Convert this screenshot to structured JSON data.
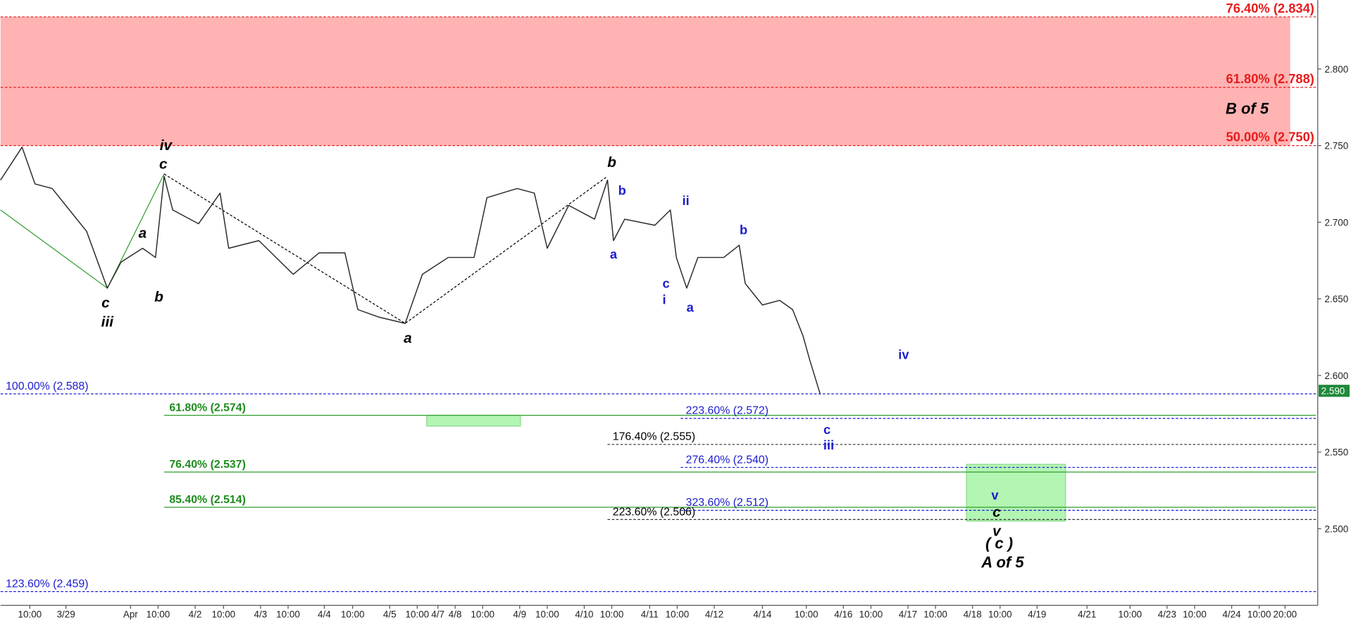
{
  "chart_data": {
    "type": "line",
    "xlim": [
      0,
      1528
    ],
    "ylim": [
      2.45,
      2.845
    ],
    "yticks": [
      {
        "value": 2.5,
        "label": "2.500"
      },
      {
        "value": 2.55,
        "label": "2.550"
      },
      {
        "value": 2.6,
        "label": "2.600"
      },
      {
        "value": 2.65,
        "label": "2.650"
      },
      {
        "value": 2.7,
        "label": "2.700"
      },
      {
        "value": 2.75,
        "label": "2.750"
      },
      {
        "value": 2.8,
        "label": "2.800"
      }
    ],
    "xticks": [
      {
        "value": 34,
        "label": "10:00"
      },
      {
        "value": 76,
        "label": "3/29"
      },
      {
        "value": 151,
        "label": "Apr"
      },
      {
        "value": 183,
        "label": "10:00"
      },
      {
        "value": 226,
        "label": "4/2"
      },
      {
        "value": 259,
        "label": "10:00"
      },
      {
        "value": 302,
        "label": "4/3"
      },
      {
        "value": 334,
        "label": "10:00"
      },
      {
        "value": 376,
        "label": "4/4"
      },
      {
        "value": 409,
        "label": "10:00"
      },
      {
        "value": 452,
        "label": "4/5"
      },
      {
        "value": 484,
        "label": "10:00"
      },
      {
        "value": 508,
        "label": "4/7"
      },
      {
        "value": 528,
        "label": "4/8"
      },
      {
        "value": 560,
        "label": "10:00"
      },
      {
        "value": 603,
        "label": "4/9"
      },
      {
        "value": 635,
        "label": "10:00"
      },
      {
        "value": 678,
        "label": "4/10"
      },
      {
        "value": 710,
        "label": "10:00"
      },
      {
        "value": 754,
        "label": "4/11"
      },
      {
        "value": 786,
        "label": "10:00"
      },
      {
        "value": 829,
        "label": "4/12"
      },
      {
        "value": 885,
        "label": "4/14"
      },
      {
        "value": 936,
        "label": "10:00"
      },
      {
        "value": 979,
        "label": "4/16"
      },
      {
        "value": 1011,
        "label": "10:00"
      },
      {
        "value": 1054,
        "label": "4/17"
      },
      {
        "value": 1086,
        "label": "10:00"
      },
      {
        "value": 1129,
        "label": "4/18"
      },
      {
        "value": 1161,
        "label": "10:00"
      },
      {
        "value": 1204,
        "label": "4/19"
      },
      {
        "value": 1262,
        "label": "4/21"
      },
      {
        "value": 1312,
        "label": "10:00"
      },
      {
        "value": 1355,
        "label": "4/23"
      },
      {
        "value": 1387,
        "label": "10:00"
      },
      {
        "value": 1430,
        "label": "4/24"
      },
      {
        "value": 1462,
        "label": "10:00"
      },
      {
        "value": 1492,
        "label": "20:00"
      }
    ],
    "series": [
      {
        "color": "#2a2a2a",
        "x": [
          0,
          25,
          40,
          60,
          80,
          100,
          124,
          140,
          165,
          180,
          190,
          200,
          230,
          255,
          265,
          300,
          340,
          370,
          400,
          415,
          440,
          470,
          490,
          520,
          550,
          565,
          600,
          620,
          635,
          660,
          690,
          705,
          712,
          725,
          760,
          778,
          785,
          797,
          810,
          840,
          858,
          865,
          885,
          905,
          920,
          932,
          940,
          952
        ],
        "values": [
          2.7275,
          2.749,
          2.725,
          2.722,
          2.708,
          2.694,
          2.657,
          2.674,
          2.683,
          2.677,
          2.73,
          2.708,
          2.699,
          2.719,
          2.683,
          2.688,
          2.666,
          2.68,
          2.68,
          2.643,
          2.638,
          2.634,
          2.666,
          2.677,
          2.677,
          2.716,
          2.722,
          2.719,
          2.683,
          2.711,
          2.702,
          2.7275,
          2.688,
          2.702,
          2.698,
          2.708,
          2.677,
          2.657,
          2.677,
          2.677,
          2.685,
          2.66,
          2.646,
          2.649,
          2.643,
          2.626,
          2.61,
          2.588
        ]
      }
    ],
    "last_price": {
      "value": 2.59,
      "label": "2.590"
    },
    "zones": [
      {
        "x": [
          0,
          1498
        ],
        "range": [
          2.75,
          2.834
        ],
        "color": "#ffb3b3"
      },
      {
        "x": [
          495,
          604
        ],
        "range": [
          2.567,
          2.574
        ],
        "color": "#b3f5b3"
      },
      {
        "x": [
          1122,
          1237
        ],
        "range": [
          2.505,
          2.542
        ],
        "color": "#b3f5b3"
      }
    ],
    "wave_lines": [
      {
        "color": "#2e9e2e",
        "dash": false,
        "x": [
          0,
          124,
          190
        ],
        "values": [
          2.708,
          2.657,
          2.7315
        ]
      },
      {
        "color": "#000000",
        "dash": true,
        "x": [
          190,
          470,
          705
        ],
        "values": [
          2.7315,
          2.634,
          2.73
        ]
      }
    ],
    "levels": [
      {
        "label": "76.40% (2.834)",
        "value": 2.834,
        "color": "#e81c1c",
        "x_start": 0,
        "dash": true,
        "side": "right"
      },
      {
        "label": "61.80% (2.788)",
        "value": 2.788,
        "color": "#e81c1c",
        "x_start": 0,
        "dash": true,
        "side": "right"
      },
      {
        "label": "50.00% (2.750)",
        "value": 2.75,
        "color": "#e81c1c",
        "x_start": 0,
        "dash": true,
        "side": "right"
      },
      {
        "label": "100.00% (2.588)",
        "value": 2.588,
        "color": "#1c1cd0",
        "x_start": 0,
        "dash": true,
        "side": "left"
      },
      {
        "label": "123.60% (2.459)",
        "value": 2.459,
        "color": "#1c1cd0",
        "x_start": 0,
        "dash": true,
        "side": "left"
      },
      {
        "label": "61.80% (2.574)",
        "value": 2.574,
        "color": "#1e8c1e",
        "x_start": 190,
        "dash": false,
        "side": "left"
      },
      {
        "label": "76.40% (2.537)",
        "value": 2.537,
        "color": "#1e8c1e",
        "x_start": 190,
        "dash": false,
        "side": "left"
      },
      {
        "label": "85.40% (2.514)",
        "value": 2.514,
        "color": "#1e8c1e",
        "x_start": 190,
        "dash": false,
        "side": "left"
      },
      {
        "label": "176.40% (2.555)",
        "value": 2.555,
        "color": "#000000",
        "x_start": 705,
        "dash": true,
        "side": "left"
      },
      {
        "label": "223.60% (2.506)",
        "value": 2.506,
        "color": "#000000",
        "x_start": 705,
        "dash": true,
        "side": "left"
      },
      {
        "label": "223.60% (2.572)",
        "value": 2.572,
        "color": "#1c1cd0",
        "x_start": 790,
        "dash": true,
        "side": "left"
      },
      {
        "label": "276.40% (2.540)",
        "value": 2.54,
        "color": "#1c1cd0",
        "x_start": 790,
        "dash": true,
        "side": "left"
      },
      {
        "label": "323.60% (2.512)",
        "value": 2.512,
        "color": "#1c1cd0",
        "x_start": 790,
        "dash": true,
        "side": "left"
      }
    ],
    "annotations": [
      {
        "text": "iv",
        "x": 192,
        "y": 2.75,
        "color": "#000000",
        "italic": true
      },
      {
        "text": "c",
        "x": 189,
        "y": 2.7376,
        "color": "#000000",
        "italic": true
      },
      {
        "text": "a",
        "x": 165,
        "y": 2.6927,
        "color": "#000000",
        "italic": true
      },
      {
        "text": "b",
        "x": 184,
        "y": 2.6511,
        "color": "#000000",
        "italic": true
      },
      {
        "text": "c",
        "x": 122,
        "y": 2.6472,
        "color": "#000000",
        "italic": true
      },
      {
        "text": "iii",
        "x": 124,
        "y": 2.6348,
        "color": "#000000",
        "italic": true
      },
      {
        "text": "a",
        "x": 473,
        "y": 2.6242,
        "color": "#000000",
        "italic": true
      },
      {
        "text": "b",
        "x": 710,
        "y": 2.7388,
        "color": "#000000",
        "italic": true
      },
      {
        "text": "B of 5",
        "x": 1448,
        "y": 2.7736,
        "color": "#000000",
        "italic": true
      },
      {
        "text": "c",
        "x": 1157,
        "y": 2.5107,
        "color": "#000000",
        "italic": true
      },
      {
        "text": "v",
        "x": 1157,
        "y": 2.4983,
        "color": "#000000",
        "italic": true
      },
      {
        "text": "( c )",
        "x": 1160,
        "y": 2.4899,
        "color": "#000000",
        "italic": true
      },
      {
        "text": "A of 5",
        "x": 1164,
        "y": 2.4775,
        "color": "#000000",
        "italic": true
      },
      {
        "text": "b",
        "x": 722,
        "y": 2.7208,
        "color": "#1c1cd0",
        "italic": false
      },
      {
        "text": "a",
        "x": 712,
        "y": 2.6792,
        "color": "#1c1cd0",
        "italic": false
      },
      {
        "text": "ii",
        "x": 796,
        "y": 2.714,
        "color": "#1c1cd0",
        "italic": false
      },
      {
        "text": "c",
        "x": 773,
        "y": 2.6601,
        "color": "#1c1cd0",
        "italic": false
      },
      {
        "text": "i",
        "x": 771,
        "y": 2.6494,
        "color": "#1c1cd0",
        "italic": false
      },
      {
        "text": "a",
        "x": 801,
        "y": 2.6444,
        "color": "#1c1cd0",
        "italic": false
      },
      {
        "text": "b",
        "x": 863,
        "y": 2.6949,
        "color": "#1c1cd0",
        "italic": false
      },
      {
        "text": "iv",
        "x": 1049,
        "y": 2.6135,
        "color": "#1c1cd0",
        "italic": false
      },
      {
        "text": "c",
        "x": 960,
        "y": 2.5646,
        "color": "#1c1cd0",
        "italic": false
      },
      {
        "text": "iii",
        "x": 962,
        "y": 2.5545,
        "color": "#1c1cd0",
        "italic": false
      },
      {
        "text": "v",
        "x": 1155,
        "y": 2.5219,
        "color": "#1c1cd0",
        "italic": false
      }
    ]
  }
}
